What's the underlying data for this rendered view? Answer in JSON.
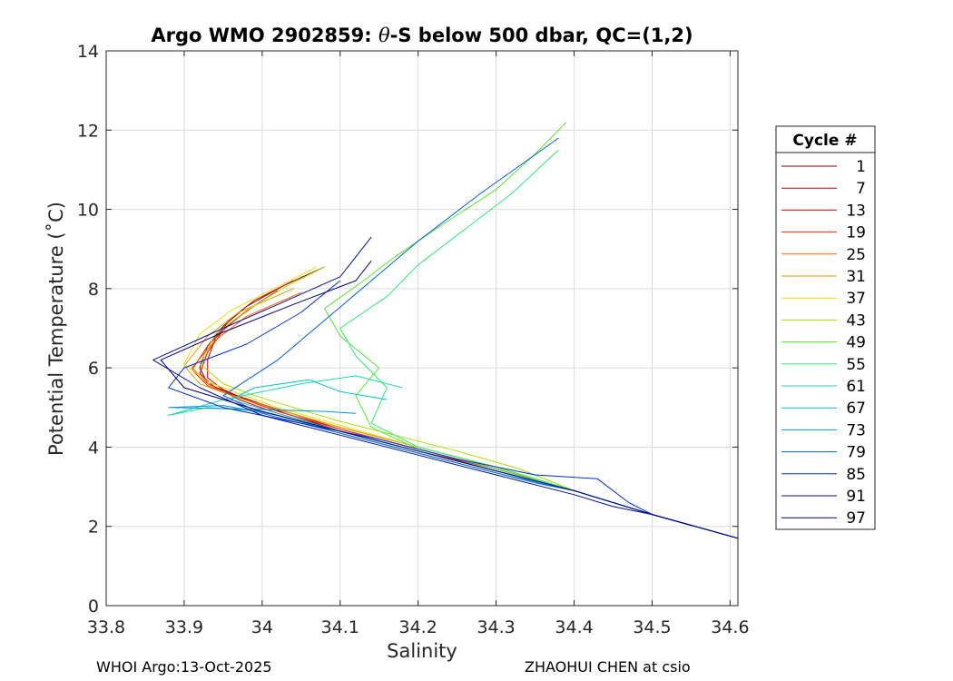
{
  "chart_data": {
    "type": "line",
    "title": "Argo WMO 2902859: θ-S below 500 dbar,  QC=(1,2)",
    "title_parts": {
      "prefix": "Argo WMO 2902859: ",
      "symbol": "θ",
      "suffix": "-S below 500 dbar,  QC=(1,2)"
    },
    "xlabel": "Salinity",
    "ylabel": "Potential Temperature (˚C)",
    "xlim": [
      33.8,
      34.61
    ],
    "ylim": [
      0,
      14
    ],
    "xticks": [
      33.8,
      33.9,
      34.0,
      34.1,
      34.2,
      34.3,
      34.4,
      34.5,
      34.6
    ],
    "xtick_labels": [
      "33.8",
      "33.9",
      "34",
      "34.1",
      "34.2",
      "34.3",
      "34.4",
      "34.5",
      "34.6"
    ],
    "yticks": [
      0,
      2,
      4,
      6,
      8,
      10,
      12,
      14
    ],
    "ytick_labels": [
      "0",
      "2",
      "4",
      "6",
      "8",
      "10",
      "12",
      "14"
    ],
    "grid": true,
    "legend_title": "Cycle #",
    "legend_position": "outside-right",
    "series": [
      {
        "name": "1",
        "color": "#800000",
        "s": [
          34.61,
          34.5,
          34.4,
          34.3,
          34.2,
          34.1,
          34.03,
          33.99,
          33.96,
          33.93,
          33.92,
          33.93,
          33.95,
          33.98,
          34.03,
          34.08
        ],
        "t": [
          1.7,
          2.3,
          2.9,
          3.4,
          3.9,
          4.4,
          4.85,
          5.15,
          5.35,
          5.6,
          6.0,
          6.55,
          7.05,
          7.55,
          8.1,
          8.55
        ]
      },
      {
        "name": "7",
        "color": "#c00000",
        "s": [
          34.61,
          34.5,
          34.4,
          34.3,
          34.2,
          34.1,
          34.03,
          33.98,
          33.95,
          33.93,
          33.93,
          33.94,
          33.96,
          33.99,
          34.04
        ],
        "t": [
          1.7,
          2.3,
          2.9,
          3.45,
          3.95,
          4.45,
          4.9,
          5.2,
          5.45,
          5.75,
          6.2,
          6.75,
          7.25,
          7.7,
          8.2
        ]
      },
      {
        "name": "13",
        "color": "#ea0000",
        "s": [
          34.61,
          34.5,
          34.4,
          34.3,
          34.2,
          34.1,
          34.02,
          33.97,
          33.94,
          33.92,
          33.93,
          33.95,
          33.98,
          34.02
        ],
        "t": [
          1.7,
          2.3,
          2.9,
          3.45,
          3.9,
          4.4,
          4.85,
          5.2,
          5.5,
          5.85,
          6.4,
          6.95,
          7.45,
          7.95
        ]
      },
      {
        "name": "19",
        "color": "#ff2000",
        "s": [
          34.61,
          34.5,
          34.4,
          34.3,
          34.2,
          34.1,
          34.02,
          33.97,
          33.93,
          33.91,
          33.93,
          33.96,
          34.0
        ],
        "t": [
          1.7,
          2.3,
          2.9,
          3.45,
          3.95,
          4.45,
          4.9,
          5.25,
          5.55,
          5.95,
          6.55,
          7.15,
          7.7
        ]
      },
      {
        "name": "25",
        "color": "#ff6000",
        "s": [
          34.61,
          34.5,
          34.4,
          34.3,
          34.2,
          34.1,
          34.02,
          33.96,
          33.93,
          33.91,
          33.94,
          33.98,
          34.05
        ],
        "t": [
          1.7,
          2.3,
          2.9,
          3.5,
          4.0,
          4.5,
          4.95,
          5.3,
          5.6,
          6.0,
          6.7,
          7.3,
          7.9
        ]
      },
      {
        "name": "31",
        "color": "#d8a000",
        "s": [
          34.61,
          34.5,
          34.4,
          34.3,
          34.2,
          34.1,
          34.02,
          33.96,
          33.92,
          33.9,
          33.93,
          33.97,
          34.04
        ],
        "t": [
          1.7,
          2.3,
          2.9,
          3.5,
          4.0,
          4.5,
          4.95,
          5.3,
          5.6,
          6.05,
          6.8,
          7.4,
          8.0
        ]
      },
      {
        "name": "37",
        "color": "#e8e000",
        "s": [
          34.61,
          34.5,
          34.4,
          34.3,
          34.2,
          34.1,
          34.02,
          33.97,
          33.93,
          33.9,
          33.92,
          33.96,
          34.02,
          34.07
        ],
        "t": [
          1.7,
          2.3,
          2.9,
          3.5,
          4.0,
          4.55,
          5.0,
          5.35,
          5.65,
          6.1,
          6.85,
          7.45,
          8.05,
          8.55
        ]
      },
      {
        "name": "43",
        "color": "#a8e000",
        "s": [
          34.61,
          34.5,
          34.4,
          34.33,
          34.25,
          34.17,
          34.1,
          34.04,
          33.99,
          33.95,
          33.92,
          33.94,
          33.98,
          34.03,
          34.08
        ],
        "t": [
          1.7,
          2.3,
          2.9,
          3.45,
          3.9,
          4.3,
          4.65,
          5.0,
          5.3,
          5.6,
          6.1,
          6.85,
          7.45,
          8.05,
          8.55
        ]
      },
      {
        "name": "49",
        "color": "#58e830",
        "s": [
          34.61,
          34.5,
          34.4,
          34.3,
          34.2,
          34.14,
          34.12,
          34.15,
          34.1,
          34.08,
          34.13,
          34.17,
          34.23,
          34.3,
          34.35,
          34.39
        ],
        "t": [
          1.7,
          2.3,
          2.9,
          3.45,
          3.95,
          4.5,
          5.3,
          6.0,
          6.8,
          7.5,
          8.2,
          8.8,
          9.6,
          10.5,
          11.4,
          12.2
        ]
      },
      {
        "name": "55",
        "color": "#30e878",
        "s": [
          34.61,
          34.5,
          34.4,
          34.3,
          34.2,
          34.14,
          34.16,
          34.12,
          34.1,
          34.16,
          34.2,
          34.26,
          34.32,
          34.38
        ],
        "t": [
          1.7,
          2.3,
          2.9,
          3.5,
          4.0,
          4.6,
          5.5,
          6.3,
          7.0,
          7.8,
          8.6,
          9.5,
          10.4,
          11.5
        ]
      },
      {
        "name": "61",
        "color": "#20d8a8",
        "s": [
          34.61,
          34.5,
          34.4,
          34.3,
          34.2,
          34.1,
          34.0,
          33.93,
          33.88,
          33.95,
          34.05,
          34.12,
          34.18
        ],
        "t": [
          1.7,
          2.3,
          2.9,
          3.4,
          3.9,
          4.4,
          4.9,
          5.0,
          4.8,
          5.2,
          5.6,
          5.8,
          5.5
        ]
      },
      {
        "name": "67",
        "color": "#00c0d0",
        "s": [
          34.61,
          34.5,
          34.4,
          34.3,
          34.2,
          34.1,
          34.02,
          33.96,
          33.99,
          34.06,
          34.1,
          34.16
        ],
        "t": [
          1.7,
          2.3,
          2.9,
          3.4,
          3.9,
          4.4,
          4.85,
          5.2,
          5.5,
          5.7,
          5.4,
          5.2
        ]
      },
      {
        "name": "73",
        "color": "#0098d8",
        "s": [
          34.61,
          34.5,
          34.4,
          34.3,
          34.2,
          34.1,
          34.02,
          33.95,
          33.88,
          34.0,
          34.08,
          34.12
        ],
        "t": [
          1.7,
          2.3,
          2.9,
          3.35,
          3.85,
          4.35,
          4.8,
          5.05,
          5.0,
          4.95,
          4.9,
          4.85
        ]
      },
      {
        "name": "79",
        "color": "#0060e0",
        "s": [
          34.61,
          34.5,
          34.4,
          34.35,
          34.3,
          34.2,
          34.1,
          34.0,
          33.95,
          34.02,
          34.08,
          34.14,
          34.2,
          34.28,
          34.38
        ],
        "t": [
          1.7,
          2.3,
          2.9,
          3.1,
          3.35,
          3.85,
          4.35,
          4.85,
          5.3,
          6.2,
          7.2,
          8.2,
          9.2,
          10.4,
          11.8
        ]
      },
      {
        "name": "85",
        "color": "#0030c8",
        "s": [
          34.61,
          34.5,
          34.47,
          34.43,
          34.35,
          34.25,
          34.15,
          34.05,
          33.95,
          33.88,
          33.9,
          33.98,
          34.05,
          34.1
        ],
        "t": [
          1.7,
          2.3,
          2.6,
          3.2,
          3.3,
          3.7,
          4.2,
          4.6,
          5.0,
          5.5,
          6.0,
          6.6,
          7.4,
          8.2
        ]
      },
      {
        "name": "91",
        "color": "#0010a0",
        "s": [
          34.61,
          34.5,
          34.45,
          34.4,
          34.3,
          34.2,
          34.1,
          34.0,
          33.92,
          33.86,
          33.95,
          34.02,
          34.1,
          34.14
        ],
        "t": [
          1.7,
          2.3,
          2.5,
          2.8,
          3.3,
          3.8,
          4.3,
          4.8,
          5.5,
          6.2,
          7.0,
          7.6,
          8.3,
          9.3
        ]
      },
      {
        "name": "97",
        "color": "#000080",
        "s": [
          34.61,
          34.5,
          34.4,
          34.3,
          34.2,
          34.1,
          34.0,
          33.9,
          33.87,
          33.95,
          34.04,
          34.12,
          34.14
        ],
        "t": [
          1.7,
          2.3,
          2.9,
          3.4,
          3.9,
          4.4,
          4.9,
          5.5,
          6.2,
          6.9,
          7.6,
          8.2,
          8.7
        ]
      }
    ]
  },
  "footer": {
    "left": "WHOI Argo:13-Oct-2025",
    "right": "ZHAOHUI CHEN at csio"
  }
}
